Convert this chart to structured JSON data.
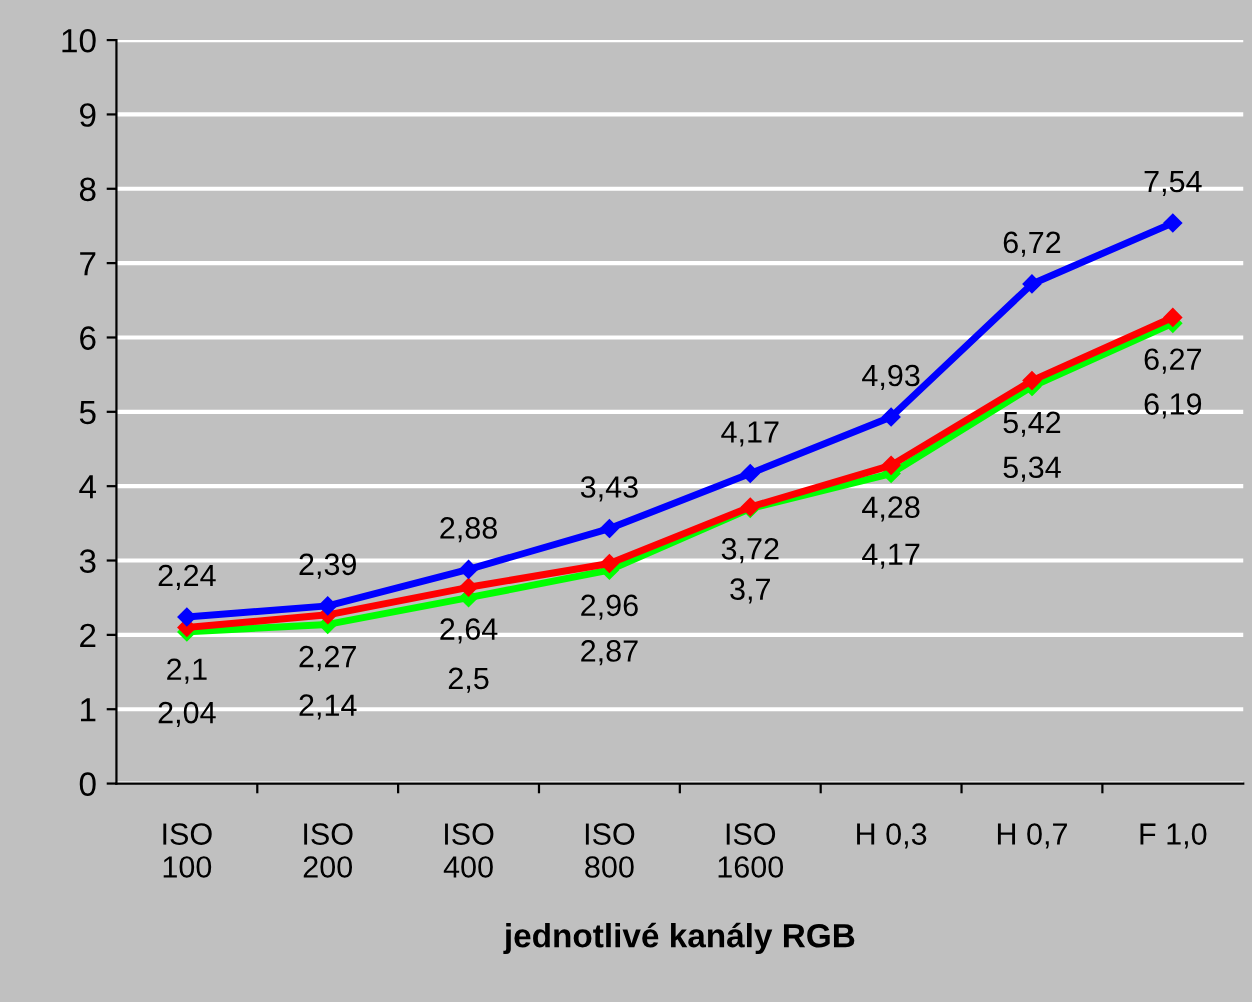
{
  "chart_data": {
    "type": "line",
    "xlabel": "jednotlivé kanály RGB",
    "categories": [
      "ISO\n100",
      "ISO\n200",
      "ISO\n400",
      "ISO\n800",
      "ISO\n1600",
      "H 0,3",
      "H 0,7",
      "F 1,0"
    ],
    "series": [
      {
        "color": "#0000ff",
        "values": [
          2.24,
          2.39,
          2.88,
          3.43,
          4.17,
          4.93,
          6.72,
          7.54
        ],
        "value_labels": [
          "2,24",
          "2,39",
          "2,88",
          "3,43",
          "4,17",
          "4,93",
          "6,72",
          "7,54"
        ]
      },
      {
        "color": "#ff0000",
        "values": [
          2.1,
          2.27,
          2.64,
          2.96,
          3.72,
          4.28,
          5.42,
          6.27
        ],
        "value_labels": [
          "2,1",
          "2,27",
          "2,64",
          "2,96",
          "3,72",
          "4,28",
          "5,42",
          "6,27"
        ]
      },
      {
        "color": "#00ff00",
        "values": [
          2.04,
          2.14,
          2.5,
          2.87,
          3.7,
          4.17,
          5.34,
          6.19
        ],
        "value_labels": [
          "2,04",
          "2,14",
          "2,5",
          "2,87",
          "3,7",
          "4,17",
          "5,34",
          "6,19"
        ]
      }
    ],
    "ylim": [
      0,
      10
    ],
    "yticks": [
      0,
      1,
      2,
      3,
      4,
      5,
      6,
      7,
      8,
      9,
      10
    ],
    "grid": "y",
    "marker": "diamond",
    "line_style": "solid",
    "legend": false
  }
}
